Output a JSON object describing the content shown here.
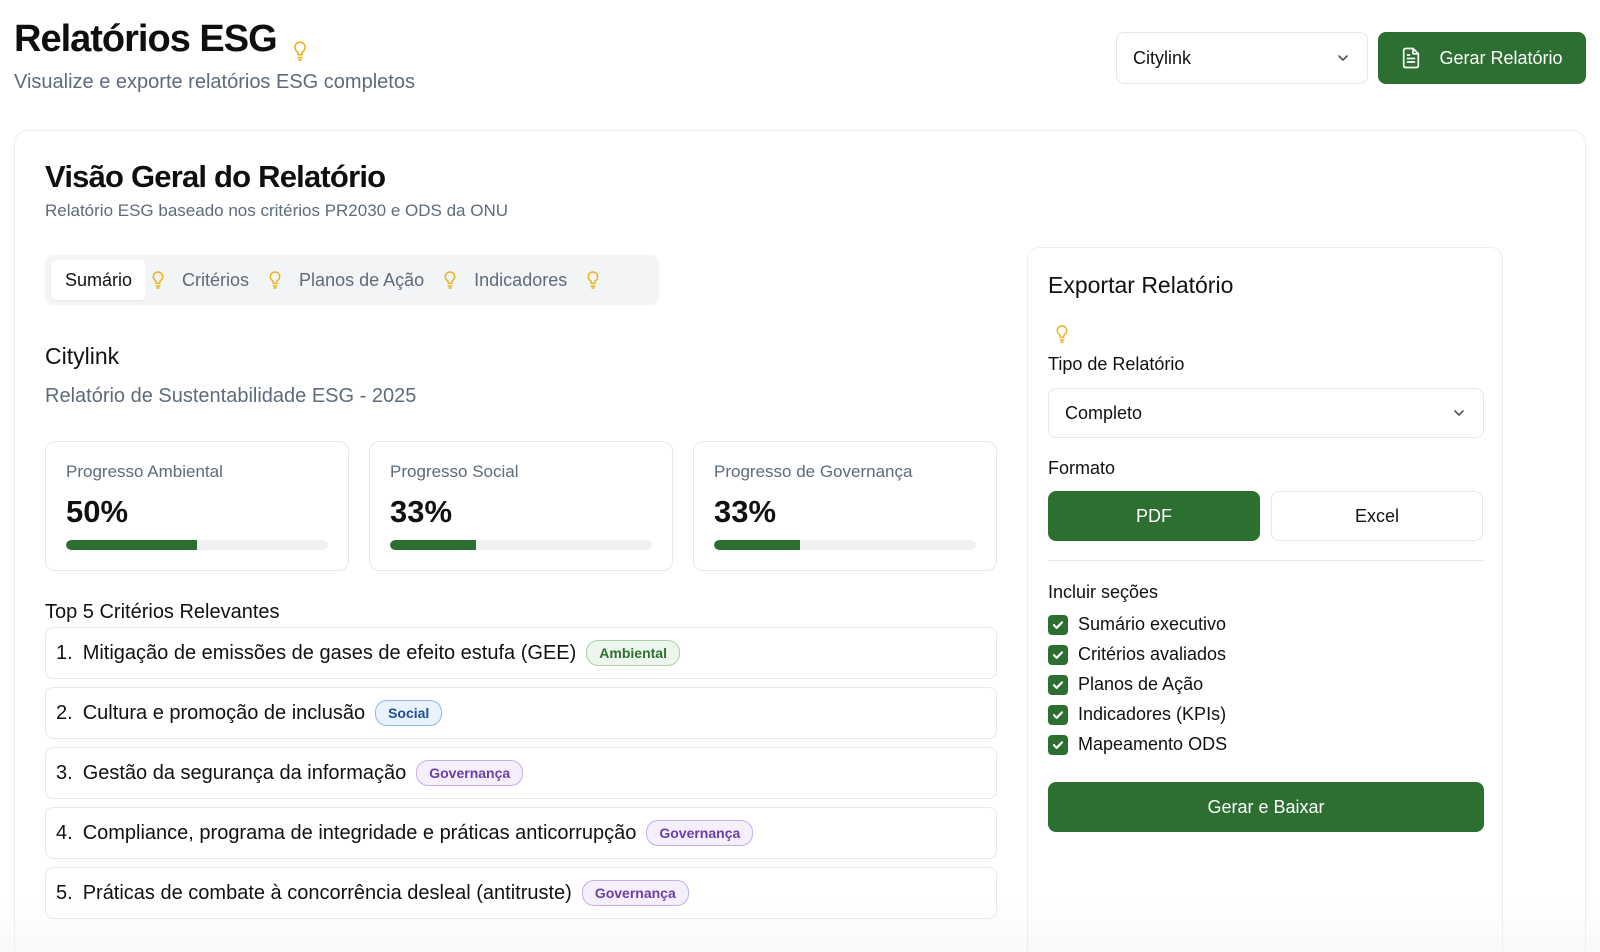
{
  "header": {
    "title": "Relatórios ESG",
    "subtitle": "Visualize e exporte relatórios ESG completos",
    "company_select": "Citylink",
    "generate_label": "Gerar Relatório"
  },
  "overview": {
    "title": "Visão Geral do Relatório",
    "subtitle": "Relatório ESG baseado nos critérios PR2030 e ODS da ONU",
    "tabs": [
      {
        "label": "Sumário",
        "active": true
      },
      {
        "label": "Critérios",
        "active": false
      },
      {
        "label": "Planos de Ação",
        "active": false
      },
      {
        "label": "Indicadores",
        "active": false
      }
    ],
    "company_name": "Citylink",
    "report_name": "Relatório de Sustentabilidade ESG - 2025",
    "progress": [
      {
        "label": "Progresso Ambiental",
        "value_text": "50%",
        "value": 50
      },
      {
        "label": "Progresso Social",
        "value_text": "33%",
        "value": 33
      },
      {
        "label": "Progresso de Governança",
        "value_text": "33%",
        "value": 33
      }
    ],
    "top_title": "Top 5 Critérios Relevantes",
    "criteria": [
      {
        "num": "1.",
        "text": "Mitigação de emissões de gases de efeito estufa (GEE)",
        "badge": "Ambiental",
        "type": "amb"
      },
      {
        "num": "2.",
        "text": "Cultura e promoção de inclusão",
        "badge": "Social",
        "type": "soc"
      },
      {
        "num": "3.",
        "text": "Gestão da segurança da informação",
        "badge": "Governança",
        "type": "gov"
      },
      {
        "num": "4.",
        "text": "Compliance, programa de integridade e práticas anticorrupção",
        "badge": "Governança",
        "type": "gov"
      },
      {
        "num": "5.",
        "text": "Práticas de combate à concorrência desleal (antitruste)",
        "badge": "Governança",
        "type": "gov"
      }
    ]
  },
  "export": {
    "title": "Exportar Relatório",
    "type_label": "Tipo de Relatório",
    "type_value": "Completo",
    "format_label": "Formato",
    "format_pdf": "PDF",
    "format_excel": "Excel",
    "sections_label": "Incluir seções",
    "sections": [
      {
        "label": "Sumário executivo",
        "checked": true
      },
      {
        "label": "Critérios avaliados",
        "checked": true
      },
      {
        "label": "Planos de Ação",
        "checked": true
      },
      {
        "label": "Indicadores (KPIs)",
        "checked": true
      },
      {
        "label": "Mapeamento ODS",
        "checked": true
      }
    ],
    "download_label": "Gerar e Baixar"
  },
  "colors": {
    "brand_green": "#2d6f31",
    "bulb_yellow": "#e8b21a",
    "muted_text": "#5d6b7a"
  },
  "icons": {
    "bulb": "lightbulb-icon",
    "chevron": "chevron-down-icon",
    "document": "document-icon",
    "check": "check-icon"
  }
}
